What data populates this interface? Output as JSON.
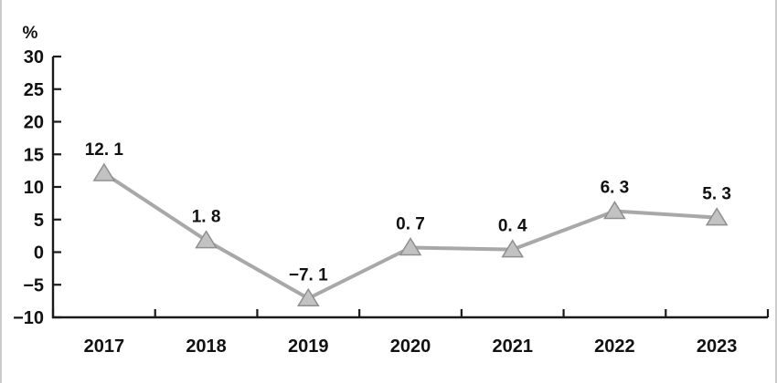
{
  "page": {
    "background": "#ffffff",
    "border_color": "#cccccc"
  },
  "chart_data": {
    "type": "line",
    "title": "",
    "xlabel": "",
    "ylabel": "%",
    "categories": [
      "2017",
      "2018",
      "2019",
      "2020",
      "2021",
      "2022",
      "2023"
    ],
    "series": [
      {
        "name": "annual-growth-rate-percent",
        "values": [
          12.1,
          1.8,
          -7.1,
          0.7,
          0.4,
          6.3,
          5.3
        ]
      }
    ],
    "point_labels": [
      "12. 1",
      "1. 8",
      "−7. 1",
      "0. 7",
      "0. 4",
      "6. 3",
      "5. 3"
    ],
    "y_ticks": [
      30,
      25,
      20,
      15,
      10,
      5,
      0,
      -5,
      -10
    ],
    "y_tick_labels": [
      "30",
      "25",
      "20",
      "15",
      "10",
      "5",
      "0",
      "−5",
      "−10"
    ],
    "ylim": [
      -10,
      30
    ],
    "grid": false,
    "legend": "none",
    "marker": "triangle-up",
    "colors": {
      "line": "#a8a8a8",
      "marker_fill": "#c2c2c2",
      "marker_stroke": "#8f8f8f",
      "axis": "#1a1a1a",
      "text": "#111111"
    }
  }
}
